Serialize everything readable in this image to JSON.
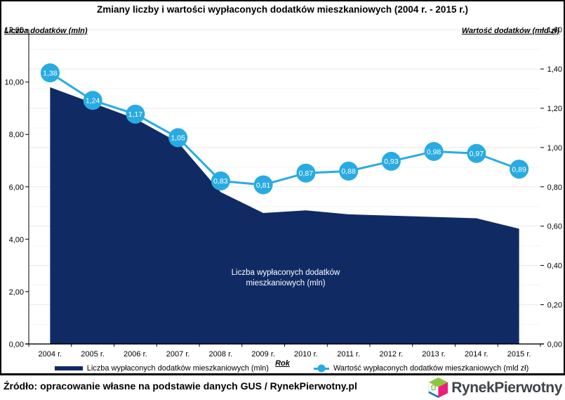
{
  "title": "Zmiany liczby i wartości wypłaconych dodatków mieszkaniowych (2004 r. - 2015 r.)",
  "area_label": {
    "line1": "Liczba wypłaconych dodatków",
    "line2": "mieszkaniowych (mln)"
  },
  "footer": {
    "source": "Źródło: opracowanie własne na podstawie danych GUS / RynekPierwotny.pl",
    "logo_text": "RynekPierwotny"
  },
  "colors": {
    "area_navy": "#102a64",
    "line_blue": "#29abe2",
    "gridline_minor": "#f4f4f4",
    "gridline_major": "#e8e8e8",
    "axis_black": "#000000",
    "logo_green": "#8cc63f",
    "logo_teal": "#00a99d",
    "logo_pink": "#ed1e7a",
    "logo_blue": "#1b75bc",
    "logo_text_gray": "#3e434b"
  },
  "chart_data": {
    "type": "combo",
    "subtypes": [
      "area",
      "line"
    ],
    "categories": [
      "2004 r.",
      "2005 r.",
      "2006 r.",
      "2007 r.",
      "2008 r.",
      "2009 r.",
      "2010 r.",
      "2011 r.",
      "2012 r.",
      "2013 r.",
      "2014 r.",
      "2015 r."
    ],
    "x_axis_title": "Rok",
    "series": [
      {
        "name": "Liczba wypłaconych dodatków mieszkaniowych (mln)",
        "type": "area",
        "axis": "left",
        "values": [
          9.8,
          9.2,
          8.6,
          7.7,
          5.8,
          5.0,
          5.1,
          4.95,
          4.9,
          4.85,
          4.8,
          4.4
        ]
      },
      {
        "name": "Wartość wypłaconych dodatków mieszkaniowych (mld zł)",
        "type": "line",
        "axis": "right",
        "values": [
          1.38,
          1.24,
          1.17,
          1.05,
          0.83,
          0.81,
          0.87,
          0.88,
          0.93,
          0.98,
          0.97,
          0.89
        ],
        "point_labels": [
          "1,38",
          "1,24",
          "1,17",
          "1,05",
          "0,83",
          "0,81",
          "0,87",
          "0,88",
          "0,93",
          "0,98",
          "0,97",
          "0,89"
        ]
      }
    ],
    "left_axis": {
      "title": "Liczba dodatków (mln)",
      "min": 0,
      "max": 12,
      "major_step": 2,
      "tick_labels": [
        "0,00",
        "2,00",
        "4,00",
        "6,00",
        "8,00",
        "10,00",
        "12,00"
      ]
    },
    "right_axis": {
      "title": "Wartość dodatków (mld zł)",
      "min": 0,
      "max": 1.6,
      "major_step": 0.2,
      "minor_step": 0.1,
      "tick_labels": [
        "0,00",
        "0,20",
        "0,40",
        "0,60",
        "0,80",
        "1,00",
        "1,20",
        "1,40",
        "1,60"
      ]
    },
    "grid": true,
    "legend_position": "bottom"
  }
}
